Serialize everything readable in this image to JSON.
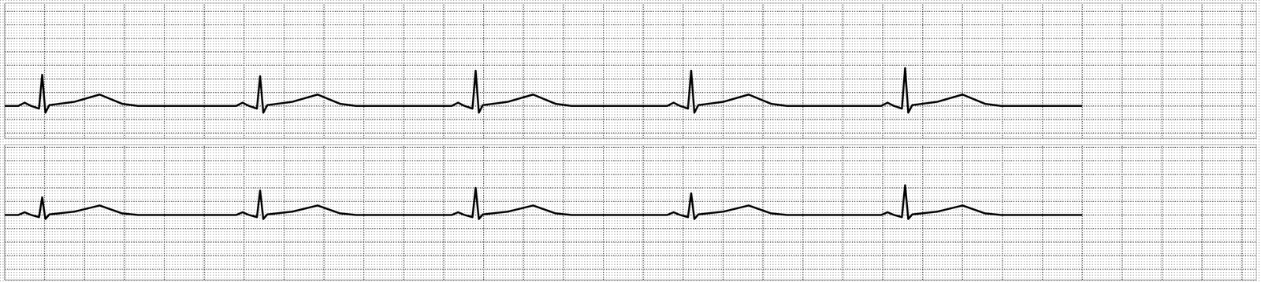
{
  "chart_data": [
    {
      "type": "line",
      "x": [
        0,
        68,
        100,
        132,
        172,
        188,
        204,
        224,
        348,
        476,
        588,
        668,
        1160,
        1192,
        1224,
        1264,
        1280,
        1296,
        1316,
        1440,
        1568,
        1680,
        1760,
        2240,
        2272,
        2304,
        2344,
        2360,
        2376,
        2396,
        2520,
        2648,
        2760,
        2840,
        3320,
        3352,
        3384,
        3424,
        3440,
        3456,
        3476,
        3600,
        3728,
        3840,
        3920,
        4392,
        4424,
        4456,
        4496,
        4512,
        4528,
        4548,
        4672,
        4800,
        4912,
        4992,
        5400
      ],
      "series": [
        {
          "color": "#000000",
          "values": [
            0,
            0,
            0.12,
            0,
            -0.1,
            1.15,
            -0.25,
            0.03,
            0.15,
            0.42,
            0.08,
            0,
            0,
            0.12,
            0,
            -0.1,
            1.1,
            -0.25,
            0.03,
            0.15,
            0.42,
            0.08,
            0,
            0,
            0.12,
            0,
            -0.1,
            1.3,
            -0.25,
            0.03,
            0.15,
            0.42,
            0.08,
            0,
            0,
            0.12,
            0,
            -0.1,
            1.3,
            -0.25,
            0.03,
            0.15,
            0.42,
            0.08,
            0,
            0,
            0.12,
            0,
            -0.1,
            1.4,
            -0.25,
            0.03,
            0.15,
            0.42,
            0.08,
            0,
            0
          ]
        }
      ],
      "xlim": [
        0,
        6272
      ],
      "ylim": [
        -1.2,
        3.8
      ],
      "xticks": [
        0,
        200,
        400,
        600,
        800,
        1000,
        1200,
        1400,
        1600,
        1800,
        2000,
        2200,
        2400,
        2600,
        2800,
        3000,
        3200,
        3400,
        3600,
        3800,
        4000,
        4200,
        4400,
        4600,
        4800,
        5000,
        5200,
        5400,
        5600,
        5800,
        6000,
        6200
      ],
      "yticks": [
        -1,
        -0.5,
        0,
        0.5,
        1,
        1.5,
        2,
        2.5,
        3,
        3.5
      ],
      "grid": true,
      "tick_labels": false
    },
    {
      "type": "line",
      "x": [
        0,
        68,
        100,
        132,
        172,
        188,
        204,
        224,
        348,
        476,
        588,
        668,
        1160,
        1192,
        1224,
        1264,
        1280,
        1296,
        1316,
        1440,
        1568,
        1680,
        1760,
        2240,
        2272,
        2304,
        2344,
        2360,
        2376,
        2396,
        2520,
        2648,
        2760,
        2840,
        3320,
        3352,
        3384,
        3424,
        3440,
        3456,
        3476,
        3600,
        3728,
        3840,
        3920,
        4392,
        4424,
        4456,
        4496,
        4512,
        4528,
        4548,
        4672,
        4800,
        4912,
        4992,
        5400
      ],
      "series": [
        {
          "color": "#000000",
          "values": [
            0,
            0,
            0.1,
            0,
            -0.08,
            0.65,
            -0.15,
            0.02,
            0.12,
            0.35,
            0.06,
            0,
            0,
            0.1,
            0,
            -0.08,
            0.9,
            -0.15,
            0.02,
            0.12,
            0.35,
            0.06,
            0,
            0,
            0.1,
            0,
            -0.08,
            1.0,
            -0.15,
            0.02,
            0.12,
            0.35,
            0.06,
            0,
            0,
            0.1,
            0,
            -0.08,
            0.8,
            -0.15,
            0.02,
            0.12,
            0.35,
            0.06,
            0,
            0,
            0.1,
            0,
            -0.08,
            1.1,
            -0.15,
            0.02,
            0.12,
            0.35,
            0.06,
            0,
            0
          ]
        }
      ],
      "xlim": [
        0,
        6272
      ],
      "ylim": [
        -2.4,
        2.6
      ],
      "xticks": [
        0,
        200,
        400,
        600,
        800,
        1000,
        1200,
        1400,
        1600,
        1800,
        2000,
        2200,
        2400,
        2600,
        2800,
        3000,
        3200,
        3400,
        3600,
        3800,
        4000,
        4200,
        4400,
        4600,
        4800,
        5000,
        5200,
        5400,
        5600,
        5800,
        6000,
        6200
      ],
      "yticks": [
        -2,
        -1.5,
        -1,
        -0.5,
        0,
        0.5,
        1,
        1.5,
        2,
        2.5
      ],
      "grid": true,
      "tick_labels": false
    }
  ]
}
